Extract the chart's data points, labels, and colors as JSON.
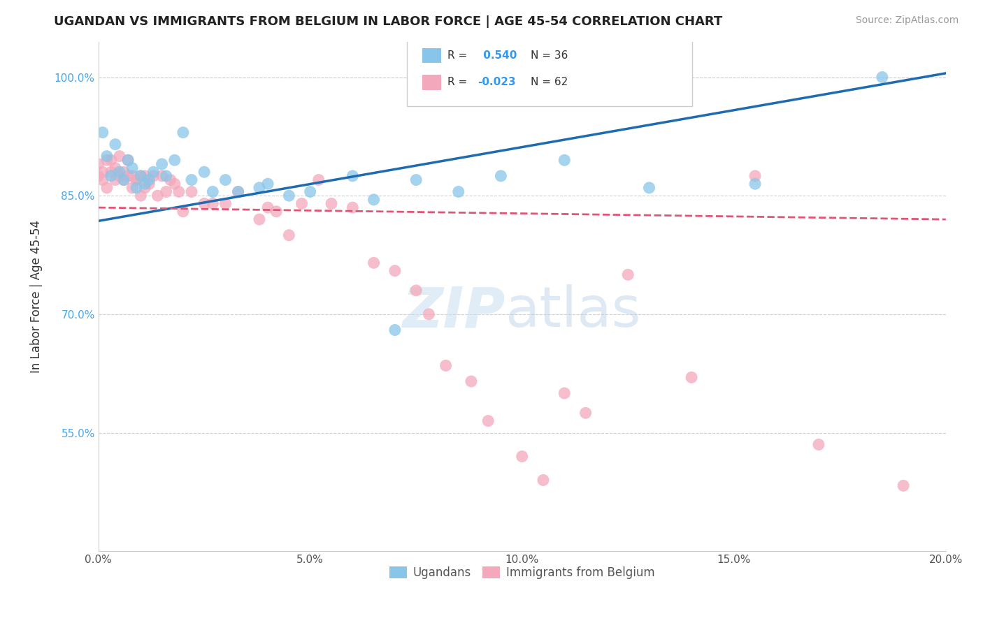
{
  "title": "UGANDAN VS IMMIGRANTS FROM BELGIUM IN LABOR FORCE | AGE 45-54 CORRELATION CHART",
  "source": "Source: ZipAtlas.com",
  "ylabel": "In Labor Force | Age 45-54",
  "x_min": 0.0,
  "x_max": 0.2,
  "y_min": 0.4,
  "y_max": 1.045,
  "y_ticks": [
    0.55,
    0.7,
    0.85,
    1.0
  ],
  "y_tick_labels": [
    "55.0%",
    "70.0%",
    "85.0%",
    "100.0%"
  ],
  "x_ticks": [
    0.0,
    0.05,
    0.1,
    0.15,
    0.2
  ],
  "x_tick_labels": [
    "0.0%",
    "5.0%",
    "10.0%",
    "15.0%",
    "20.0%"
  ],
  "blue_color": "#88c5e8",
  "pink_color": "#f4a8bb",
  "blue_line_color": "#1e6bb0",
  "pink_line_color": "#e05575",
  "r_blue": 0.54,
  "n_blue": 36,
  "r_pink": -0.023,
  "n_pink": 62,
  "blue_scatter_x": [
    0.001,
    0.002,
    0.003,
    0.004,
    0.005,
    0.006,
    0.007,
    0.008,
    0.009,
    0.01,
    0.011,
    0.012,
    0.013,
    0.015,
    0.016,
    0.018,
    0.02,
    0.022,
    0.025,
    0.027,
    0.03,
    0.033,
    0.038,
    0.04,
    0.045,
    0.05,
    0.06,
    0.065,
    0.07,
    0.075,
    0.085,
    0.095,
    0.11,
    0.13,
    0.155,
    0.185
  ],
  "blue_scatter_y": [
    0.93,
    0.9,
    0.875,
    0.915,
    0.88,
    0.87,
    0.895,
    0.885,
    0.86,
    0.875,
    0.865,
    0.87,
    0.88,
    0.89,
    0.875,
    0.895,
    0.93,
    0.87,
    0.88,
    0.855,
    0.87,
    0.855,
    0.86,
    0.865,
    0.85,
    0.855,
    0.875,
    0.845,
    0.68,
    0.87,
    0.855,
    0.875,
    0.895,
    0.86,
    0.865,
    1.0
  ],
  "pink_scatter_x": [
    0.0,
    0.0,
    0.001,
    0.001,
    0.002,
    0.002,
    0.003,
    0.003,
    0.004,
    0.004,
    0.005,
    0.005,
    0.006,
    0.006,
    0.007,
    0.007,
    0.008,
    0.008,
    0.009,
    0.009,
    0.01,
    0.01,
    0.011,
    0.011,
    0.012,
    0.013,
    0.014,
    0.015,
    0.016,
    0.017,
    0.018,
    0.019,
    0.02,
    0.022,
    0.025,
    0.027,
    0.03,
    0.033,
    0.038,
    0.04,
    0.042,
    0.045,
    0.048,
    0.052,
    0.055,
    0.06,
    0.065,
    0.07,
    0.075,
    0.078,
    0.082,
    0.088,
    0.092,
    0.1,
    0.105,
    0.11,
    0.115,
    0.125,
    0.14,
    0.155,
    0.17,
    0.19
  ],
  "pink_scatter_y": [
    0.89,
    0.875,
    0.87,
    0.88,
    0.895,
    0.86,
    0.895,
    0.88,
    0.885,
    0.87,
    0.875,
    0.9,
    0.88,
    0.87,
    0.895,
    0.875,
    0.875,
    0.86,
    0.87,
    0.87,
    0.875,
    0.85,
    0.875,
    0.86,
    0.865,
    0.875,
    0.85,
    0.875,
    0.855,
    0.87,
    0.865,
    0.855,
    0.83,
    0.855,
    0.84,
    0.84,
    0.84,
    0.855,
    0.82,
    0.835,
    0.83,
    0.8,
    0.84,
    0.87,
    0.84,
    0.835,
    0.765,
    0.755,
    0.73,
    0.7,
    0.635,
    0.615,
    0.565,
    0.52,
    0.49,
    0.6,
    0.575,
    0.75,
    0.62,
    0.875,
    0.535,
    0.483
  ],
  "blue_line_x0": 0.0,
  "blue_line_x1": 0.2,
  "blue_line_y0": 0.818,
  "blue_line_y1": 1.005,
  "pink_line_x0": 0.0,
  "pink_line_x1": 0.2,
  "pink_line_y0": 0.835,
  "pink_line_y1": 0.82,
  "watermark_zip": "ZIP",
  "watermark_atlas": "atlas",
  "background_color": "#ffffff",
  "grid_color": "#d0d0d0"
}
